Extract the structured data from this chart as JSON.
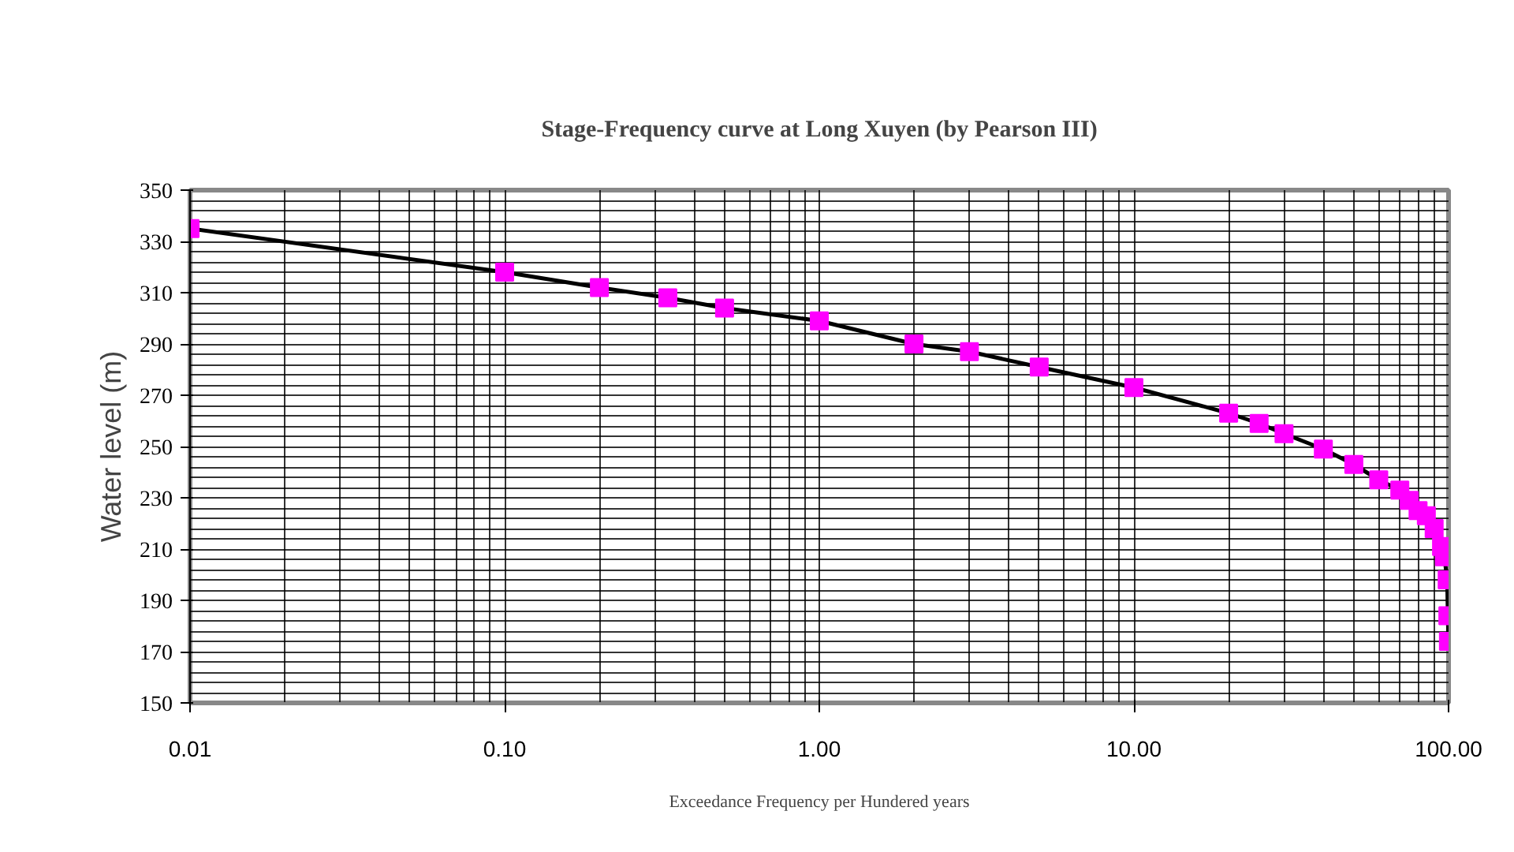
{
  "chart_data": {
    "type": "line",
    "title": "Stage-Frequency curve at Long Xuyen (by Pearson III)",
    "xlabel": "Exceedance Frequency per Hundered years",
    "ylabel": "Water level (m)",
    "x": [
      0.01,
      0.1,
      0.2,
      0.33,
      0.5,
      1,
      2,
      3,
      5,
      10,
      20,
      25,
      30,
      40,
      50,
      60,
      70,
      75,
      80,
      85,
      90,
      95,
      97,
      99,
      99.5,
      99.9
    ],
    "series": [
      {
        "color": "#ff00ff",
        "values": [
          335,
          318,
          312,
          308,
          304,
          299,
          290,
          287,
          281,
          273,
          263,
          259,
          255,
          249,
          243,
          237,
          233,
          229,
          225,
          223,
          218,
          211,
          207,
          198,
          184,
          174
        ]
      }
    ],
    "log": "x",
    "xlim": [
      0.01,
      100
    ],
    "ylim": [
      150,
      350
    ],
    "xticks": [
      0.01,
      {
        "value": 0.1,
        "label": "0.10"
      },
      {
        "value": 1,
        "label": "1.00"
      },
      {
        "value": 10,
        "label": "10.00"
      },
      {
        "value": 100,
        "label": "100.00"
      }
    ],
    "yticks": [
      150,
      170,
      190,
      210,
      230,
      250,
      270,
      290,
      310,
      330,
      350
    ],
    "grid": true,
    "marker": "square",
    "line_style": "solid"
  }
}
